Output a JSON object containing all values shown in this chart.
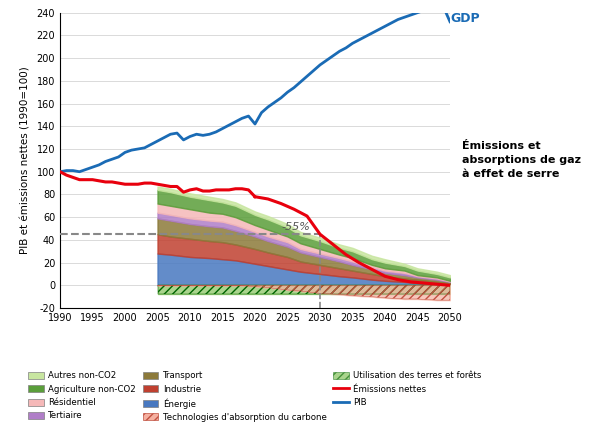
{
  "ylabel": "PIB et émissions nettes (1990=100)",
  "xlim": [
    1990,
    2050
  ],
  "ylim": [
    -20,
    240
  ],
  "yticks": [
    -20,
    0,
    20,
    40,
    60,
    80,
    100,
    120,
    140,
    160,
    180,
    200,
    220,
    240
  ],
  "xticks": [
    1990,
    1995,
    2000,
    2005,
    2010,
    2015,
    2020,
    2025,
    2030,
    2035,
    2040,
    2045,
    2050
  ],
  "gdp_label": "GDP",
  "annotation_text": "Émissions et\nabsorptions de gaz\nà effet de serre",
  "minus55_text": "-55%",
  "colors": {
    "gdp": "#1a6bb5",
    "emissions_nettes": "#e8000d",
    "autres_nonco2": "#c8e6a0",
    "agriculture_nonco2": "#5a9e3a",
    "residentiel": "#f5b8b8",
    "tertiaire": "#b07ec8",
    "transport": "#8c7a3a",
    "industrie": "#c04030",
    "energie": "#4878c0",
    "tech_absorption": "#e87060",
    "utilisation_terres": "#70b840"
  },
  "gdp_years": [
    1990,
    1991,
    1992,
    1993,
    1994,
    1995,
    1996,
    1997,
    1998,
    1999,
    2000,
    2001,
    2002,
    2003,
    2004,
    2005,
    2006,
    2007,
    2008,
    2009,
    2010,
    2011,
    2012,
    2013,
    2014,
    2015,
    2016,
    2017,
    2018,
    2019,
    2020,
    2021,
    2022,
    2023,
    2024,
    2025,
    2026,
    2027,
    2028,
    2029,
    2030,
    2031,
    2032,
    2033,
    2034,
    2035,
    2036,
    2037,
    2038,
    2039,
    2040,
    2041,
    2042,
    2043,
    2044,
    2045,
    2046,
    2047,
    2048,
    2049,
    2050
  ],
  "gdp_vals": [
    100,
    101,
    101,
    100,
    102,
    104,
    106,
    109,
    111,
    113,
    117,
    119,
    120,
    121,
    124,
    127,
    130,
    133,
    134,
    128,
    131,
    133,
    132,
    133,
    135,
    138,
    141,
    144,
    147,
    149,
    142,
    152,
    157,
    161,
    165,
    170,
    174,
    179,
    184,
    189,
    194,
    198,
    202,
    206,
    209,
    213,
    216,
    219,
    222,
    225,
    228,
    231,
    234,
    236,
    238,
    240,
    242,
    244,
    246,
    245,
    232
  ],
  "em_hist_years": [
    1990,
    1991,
    1992,
    1993,
    1994,
    1995,
    1996,
    1997,
    1998,
    1999,
    2000,
    2001,
    2002,
    2003,
    2004,
    2005,
    2006,
    2007,
    2008,
    2009,
    2010,
    2011,
    2012,
    2013,
    2014,
    2015,
    2016,
    2017,
    2018,
    2019,
    2020
  ],
  "em_hist_vals": [
    100,
    97,
    95,
    93,
    93,
    93,
    92,
    91,
    91,
    90,
    89,
    89,
    89,
    90,
    90,
    89,
    88,
    87,
    87,
    82,
    84,
    85,
    83,
    83,
    84,
    84,
    84,
    85,
    85,
    84,
    78
  ],
  "em_proj_years": [
    2020,
    2022,
    2024,
    2026,
    2028,
    2030,
    2032,
    2034,
    2036,
    2038,
    2040,
    2042,
    2044,
    2046,
    2048,
    2050
  ],
  "em_proj_vals": [
    78,
    76,
    72,
    67,
    61,
    45,
    36,
    27,
    20,
    14,
    8,
    5,
    3,
    2,
    1,
    0
  ],
  "stacked_years": [
    2005,
    2007,
    2010,
    2013,
    2015,
    2017,
    2020,
    2022,
    2025,
    2027,
    2030,
    2033,
    2035,
    2038,
    2040,
    2043,
    2045,
    2048,
    2050
  ],
  "energie": [
    28,
    27,
    25,
    24,
    23,
    22,
    19,
    17,
    14,
    12,
    10,
    8,
    7,
    5,
    4,
    3,
    2,
    1,
    0.5
  ],
  "industrie": [
    17,
    16,
    16,
    15,
    15,
    14,
    13,
    12,
    11,
    9,
    8,
    7,
    6,
    5,
    4,
    3,
    3,
    2,
    1.5
  ],
  "transport": [
    14,
    14,
    13,
    13,
    13,
    12,
    11,
    10,
    9,
    8,
    7,
    6,
    5,
    4,
    3,
    3,
    2,
    2,
    1
  ],
  "tertiaire": [
    5,
    5,
    5,
    5,
    5,
    5,
    4,
    4,
    4,
    3,
    3,
    3,
    3,
    2,
    2,
    2,
    1,
    1,
    0.5
  ],
  "residentiel": [
    8,
    8,
    8,
    7,
    7,
    7,
    6,
    6,
    5,
    5,
    4,
    3,
    3,
    2,
    2,
    2,
    1,
    1,
    0.5
  ],
  "agriculture": [
    12,
    12,
    11,
    11,
    10,
    10,
    9,
    9,
    8,
    7,
    7,
    6,
    6,
    5,
    5,
    4,
    4,
    3,
    3
  ],
  "autres": [
    3,
    3,
    3,
    3,
    3,
    3,
    3,
    3,
    3,
    3,
    3,
    3,
    3,
    3,
    3,
    2,
    2,
    2,
    2
  ],
  "tech_absorption": [
    0,
    0,
    0,
    0,
    0,
    0,
    -1,
    -2,
    -4,
    -5,
    -7,
    -8,
    -9,
    -10,
    -11,
    -12,
    -12,
    -13,
    -13
  ],
  "utilisation_terres": [
    -8,
    -8,
    -8,
    -8,
    -8,
    -8,
    -8,
    -8,
    -8,
    -8,
    -8,
    -8,
    -8,
    -8,
    -8,
    -8,
    -8,
    -8,
    -8
  ],
  "dashed_y": 45,
  "vertical_x": 2030
}
